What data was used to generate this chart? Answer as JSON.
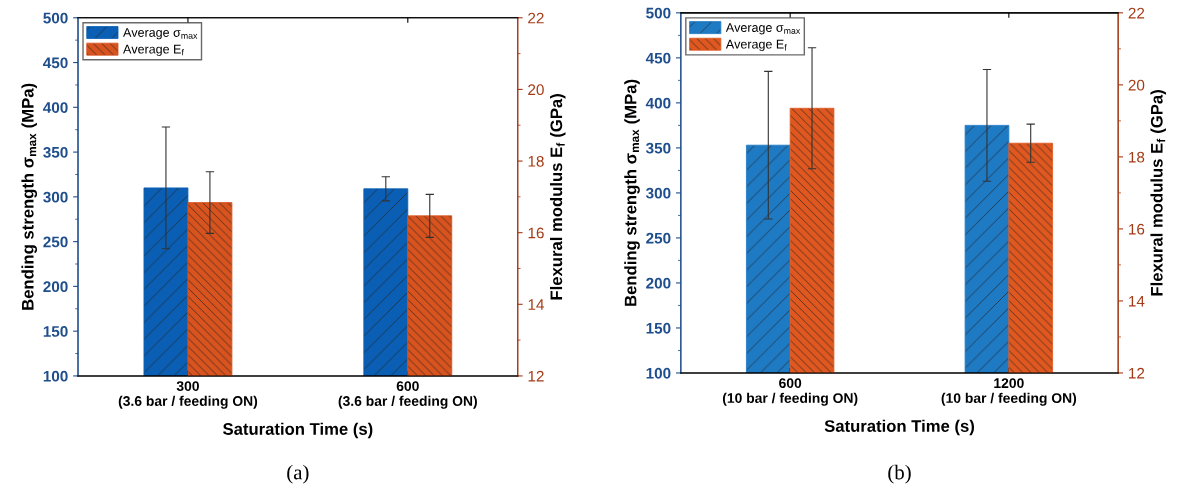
{
  "chart_data": [
    {
      "type": "bar",
      "categories": [
        "300\n(3.6 bar / feeding ON)",
        "600\n(3.6 bar / feeding ON)"
      ],
      "xlabel": "Saturation Time (s)",
      "ylabel": "Bending strength σ$_{max}$ (MPa)",
      "y2label": "Flexural modulus E$_{f}$ (GPa)",
      "ylim": [
        100,
        500
      ],
      "yticks": [
        100,
        150,
        200,
        250,
        300,
        350,
        400,
        450,
        500
      ],
      "y2lim": [
        12,
        22
      ],
      "y2ticks": [
        12,
        14,
        16,
        18,
        20,
        22
      ],
      "legend": "top left",
      "grid": false,
      "annotations": [
        "(a)"
      ],
      "series": [
        {
          "name": "Average σ$_{max}$",
          "color": "#0a5fb4",
          "values": [
            310,
            309
          ],
          "errors": [
            68,
            13.5
          ]
        },
        {
          "name": "Average E$_{f}$",
          "color": "#d9531e",
          "axis": "y2",
          "values": [
            16.84,
            16.47
          ],
          "errors": [
            0.86,
            0.6
          ]
        }
      ]
    },
    {
      "type": "bar",
      "categories": [
        "600\n(10 bar / feeding ON)",
        "1200\n(10 bar / feeding ON)"
      ],
      "xlabel": "Saturation Time (s)",
      "ylabel": "Bending strength σ$_{max}$ (MPa)",
      "y2label": "Flexural modulus E$_{f}$ (GPa)",
      "ylim": [
        100,
        500
      ],
      "yticks": [
        100,
        150,
        200,
        250,
        300,
        350,
        400,
        450,
        500
      ],
      "y2lim": [
        12,
        22
      ],
      "y2ticks": [
        12,
        14,
        16,
        18,
        20,
        22
      ],
      "legend": "top left",
      "grid": false,
      "annotations": [
        "(b)"
      ],
      "series": [
        {
          "name": "Average σ$_{max}$",
          "color": "#1f7ac4",
          "values": [
            353,
            375
          ],
          "errors": [
            82,
            62
          ]
        },
        {
          "name": "Average E$_{f}$",
          "color": "#e0581f",
          "axis": "y2",
          "values": [
            19.35,
            18.38
          ],
          "errors": [
            1.68,
            0.53
          ]
        }
      ]
    }
  ]
}
